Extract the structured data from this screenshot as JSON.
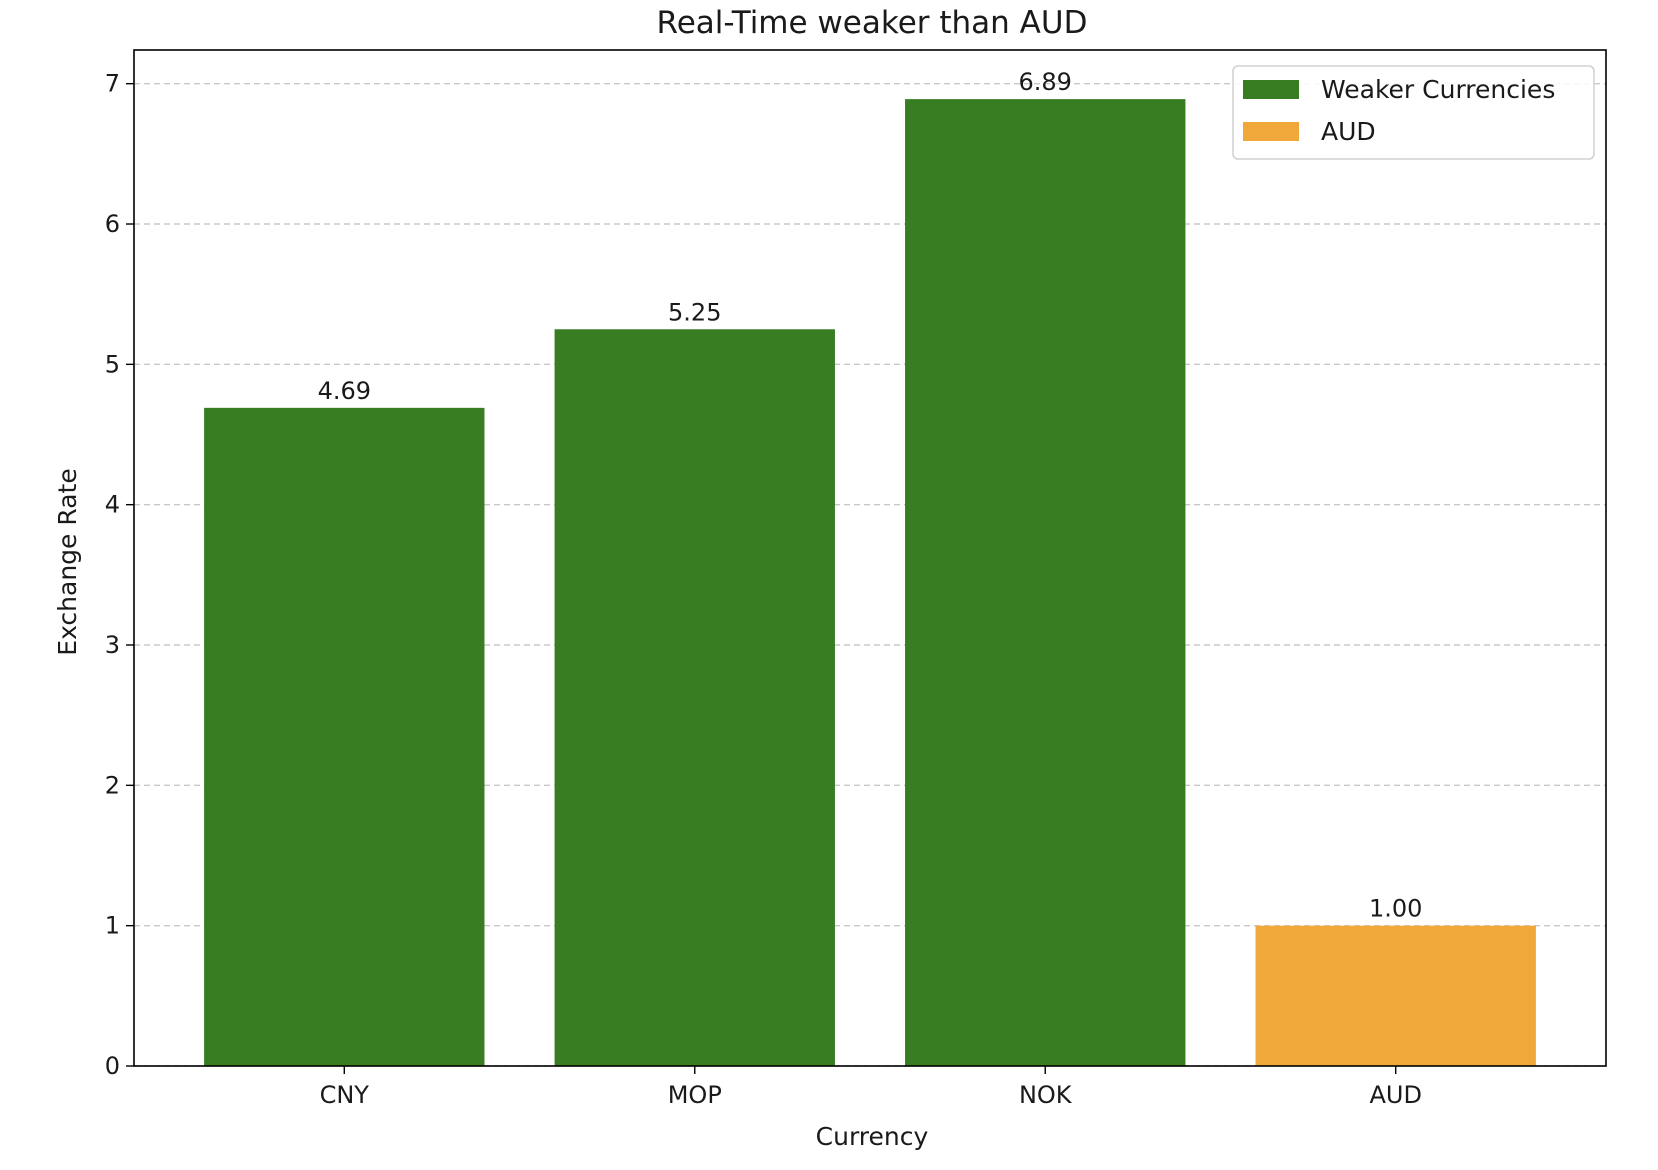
{
  "chart_data": {
    "type": "bar",
    "title": "Real-Time weaker than AUD",
    "xlabel": "Currency",
    "ylabel": "Exchange Rate",
    "categories": [
      "CNY",
      "MOP",
      "NOK",
      "AUD"
    ],
    "values": [
      4.69,
      5.25,
      6.89,
      1.0
    ],
    "value_labels": [
      "4.69",
      "5.25",
      "6.89",
      "1.00"
    ],
    "bar_series": [
      "Weaker Currencies",
      "Weaker Currencies",
      "Weaker Currencies",
      "AUD"
    ],
    "series": [
      {
        "name": "Weaker Currencies",
        "color": "#387d22"
      },
      {
        "name": "AUD",
        "color": "#f0a83a"
      }
    ],
    "yticks": [
      0,
      1,
      2,
      3,
      4,
      5,
      6,
      7
    ],
    "ylim": [
      0,
      7.24
    ],
    "grid": {
      "axis": "y",
      "style": "dashed"
    },
    "legend_position": "top-right"
  }
}
